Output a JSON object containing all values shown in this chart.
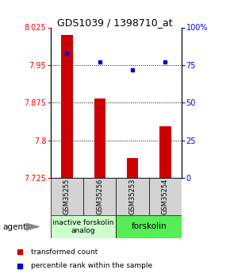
{
  "title": "GDS1039 / 1398710_at",
  "samples": [
    "GSM35255",
    "GSM35256",
    "GSM35253",
    "GSM35254"
  ],
  "bar_values": [
    8.01,
    7.883,
    7.765,
    7.828
  ],
  "percentile_values": [
    83,
    77,
    72,
    77
  ],
  "ylim_left": [
    7.725,
    8.025
  ],
  "ylim_right": [
    0,
    100
  ],
  "yticks_left": [
    7.725,
    7.8,
    7.875,
    7.95,
    8.025
  ],
  "ytick_labels_left": [
    "7.725",
    "7.8",
    "7.875",
    "7.95",
    "8.025"
  ],
  "yticks_right": [
    0,
    25,
    50,
    75,
    100
  ],
  "ytick_labels_right": [
    "0",
    "25",
    "50",
    "75",
    "100%"
  ],
  "bar_color": "#cc0000",
  "dot_color": "#0000cc",
  "agent_label_colors": [
    "#ccffcc",
    "#55ee55"
  ],
  "legend_items": [
    {
      "label": "transformed count",
      "color": "#cc0000"
    },
    {
      "label": "percentile rank within the sample",
      "color": "#0000cc"
    }
  ],
  "bar_width": 0.35,
  "title_fontsize": 9,
  "tick_fontsize": 7,
  "sample_fontsize": 6,
  "agent_fontsize": 6.5,
  "legend_fontsize": 6.5
}
